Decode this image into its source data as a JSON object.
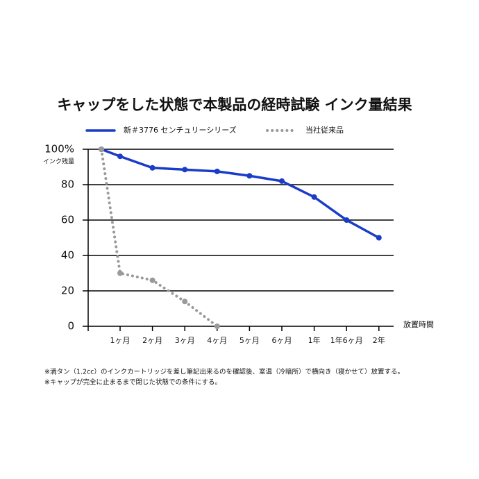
{
  "chart_data": {
    "type": "line",
    "title": "キャップをした状態で本製品の経時試験 インク量結果",
    "y_label": "インク残量",
    "x_label": "放置時間",
    "categories": [
      null,
      "1ヶ月",
      "2ヶ月",
      "3ヶ月",
      "4ヶ月",
      "5ヶ月",
      "6ヶ月",
      "1年",
      "1年6ヶ月",
      "2年"
    ],
    "series": [
      {
        "name": "新＃3776 センチュリーシリーズ",
        "color": "#1a3cc8",
        "style": "solid",
        "values": [
          100,
          96,
          89.5,
          88.5,
          87.5,
          85,
          82,
          73,
          60,
          50
        ]
      },
      {
        "name": "当社従来品",
        "color": "#9a9a9a",
        "style": "dotted",
        "values": [
          100,
          30,
          26,
          14,
          0,
          null,
          null,
          null,
          null,
          null
        ]
      }
    ],
    "ylim": [
      0,
      100
    ],
    "yticks": [
      0,
      20,
      40,
      60,
      80,
      {
        "value": 100,
        "label": "100%"
      }
    ],
    "grid": true,
    "notes": [
      "※満タン（1.2cc）のインクカートリッジを差し筆記出来るのを確認後、室温（冷暗所）で横向き（寝かせて）放置する。",
      "※キャップが完全に止まるまで閉じた状態での条件にする。"
    ]
  }
}
